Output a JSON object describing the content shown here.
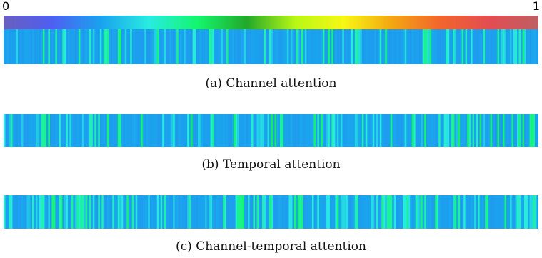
{
  "colorbar": {
    "min_label": "0",
    "max_label": "1",
    "range": [
      0,
      1
    ],
    "colormap": "rainbow",
    "stops": [
      "#6a5fbd",
      "#4e5ff2",
      "#1aa2ee",
      "#28ece0",
      "#14f56d",
      "#22a82a",
      "#b8f716",
      "#f7f715",
      "#f3a512",
      "#f2642d",
      "#e34d53",
      "#bd5f63"
    ]
  },
  "chart_data": [
    {
      "type": "heatmap",
      "title": "(a) Channel attention",
      "count": 300,
      "base_level": 0.18,
      "seed": 11,
      "highlight_fraction": 0.24,
      "highlight_range": [
        0.22,
        0.36
      ]
    },
    {
      "type": "heatmap",
      "title": "(b) Temporal attention",
      "count": 300,
      "base_level": 0.18,
      "seed": 29,
      "highlight_fraction": 0.3,
      "highlight_range": [
        0.22,
        0.38
      ]
    },
    {
      "type": "heatmap",
      "title": "(c) Channel-temporal attention",
      "count": 300,
      "base_level": 0.18,
      "seed": 47,
      "highlight_fraction": 0.33,
      "highlight_range": [
        0.22,
        0.36
      ]
    }
  ]
}
